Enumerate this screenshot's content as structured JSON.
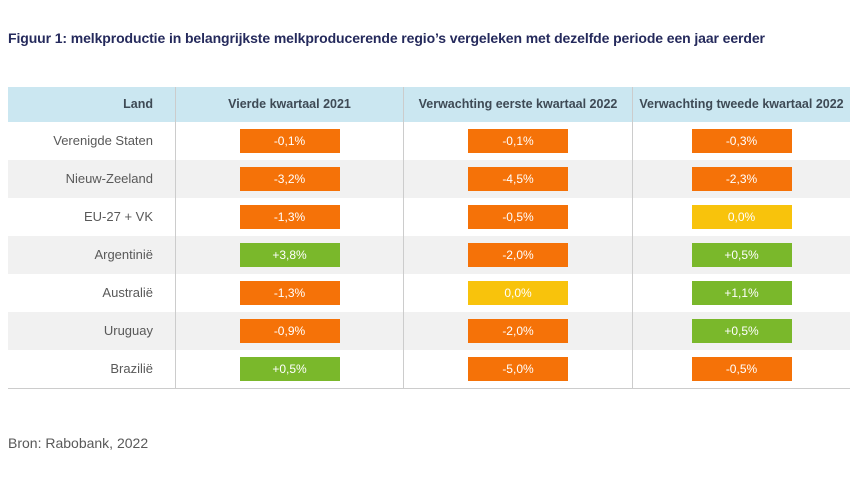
{
  "figure": {
    "title": "Figuur 1: melkproductie in belangrijkste melkproducerende regio’s vergeleken met dezelfde periode een jaar eerder",
    "source": "Bron: Rabobank, 2022"
  },
  "colors": {
    "orange": "#F57208",
    "yellow": "#F8C30C",
    "green": "#7AB82B",
    "header_bg": "#CBE7F1",
    "row_alt_bg": "#F1F1F1",
    "divider": "#CCCCCC",
    "title_text": "#252A5C",
    "header_text": "#3E4A55",
    "muted_text": "#595959"
  },
  "table": {
    "columns": [
      "Land",
      "Vierde kwartaal 2021",
      "Verwachting eerste kwartaal 2022",
      "Verwachting tweede kwartaal 2022"
    ],
    "rows": [
      {
        "land": "Verenigde Staten",
        "cells": [
          {
            "value": "-0,1%",
            "status": "orange"
          },
          {
            "value": "-0,1%",
            "status": "orange"
          },
          {
            "value": "-0,3%",
            "status": "orange"
          }
        ]
      },
      {
        "land": "Nieuw-Zeeland",
        "cells": [
          {
            "value": "-3,2%",
            "status": "orange"
          },
          {
            "value": "-4,5%",
            "status": "orange"
          },
          {
            "value": "-2,3%",
            "status": "orange"
          }
        ]
      },
      {
        "land": "EU-27 + VK",
        "cells": [
          {
            "value": "-1,3%",
            "status": "orange"
          },
          {
            "value": "-0,5%",
            "status": "orange"
          },
          {
            "value": "0,0%",
            "status": "yellow"
          }
        ]
      },
      {
        "land": "Argentinië",
        "cells": [
          {
            "value": "+3,8%",
            "status": "green"
          },
          {
            "value": "-2,0%",
            "status": "orange"
          },
          {
            "value": "+0,5%",
            "status": "green"
          }
        ]
      },
      {
        "land": "Australië",
        "cells": [
          {
            "value": "-1,3%",
            "status": "orange"
          },
          {
            "value": "0,0%",
            "status": "yellow"
          },
          {
            "value": "+1,1%",
            "status": "green"
          }
        ]
      },
      {
        "land": "Uruguay",
        "cells": [
          {
            "value": "-0,9%",
            "status": "orange"
          },
          {
            "value": "-2,0%",
            "status": "orange"
          },
          {
            "value": "+0,5%",
            "status": "green"
          }
        ]
      },
      {
        "land": "Brazilië",
        "cells": [
          {
            "value": "+0,5%",
            "status": "green"
          },
          {
            "value": "-5,0%",
            "status": "orange"
          },
          {
            "value": "-0,5%",
            "status": "orange"
          }
        ]
      }
    ]
  },
  "chart_data": {
    "type": "heatmap",
    "title": "Figuur 1: melkproductie in belangrijkste melkproducerende regio’s vergeleken met dezelfde periode een jaar eerder",
    "categories": [
      "Verenigde Staten",
      "Nieuw-Zeeland",
      "EU-27 + VK",
      "Argentinië",
      "Australië",
      "Uruguay",
      "Brazilië"
    ],
    "series": [
      {
        "name": "Vierde kwartaal 2021",
        "values": [
          -0.1,
          -3.2,
          -1.3,
          3.8,
          -1.3,
          -0.9,
          0.5
        ]
      },
      {
        "name": "Verwachting eerste kwartaal 2022",
        "values": [
          -0.1,
          -4.5,
          -0.5,
          -2.0,
          0.0,
          -2.0,
          -5.0
        ]
      },
      {
        "name": "Verwachting tweede kwartaal 2022",
        "values": [
          -0.3,
          -2.3,
          0.0,
          0.5,
          1.1,
          0.5,
          -0.5
        ]
      }
    ],
    "unit": "%",
    "color_rule": "negative = orange, zero = yellow, positive = green",
    "legend_position": "none",
    "source": "Bron: Rabobank, 2022"
  }
}
